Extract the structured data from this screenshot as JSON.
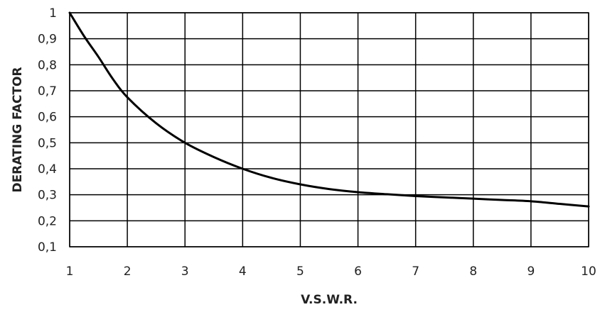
{
  "chart_data": {
    "type": "line",
    "title": "",
    "xlabel": "V.S.W.R.",
    "ylabel": "DERATING FACTOR",
    "xlim": [
      1,
      10
    ],
    "ylim": [
      0.1,
      1
    ],
    "grid": true,
    "x_ticks": [
      "1",
      "2",
      "3",
      "4",
      "5",
      "6",
      "7",
      "8",
      "9",
      "10"
    ],
    "y_ticks": [
      "0,1",
      "0,2",
      "0,3",
      "0,4",
      "0,5",
      "0,6",
      "0,7",
      "0,8",
      "0,9",
      "1"
    ],
    "series": [
      {
        "x": [
          1,
          1.25,
          1.5,
          1.75,
          2,
          2.5,
          3,
          3.5,
          4,
          4.5,
          5,
          5.5,
          6,
          6.5,
          7,
          7.5,
          8,
          8.5,
          9,
          9.5,
          10
        ],
        "y": [
          1.0,
          0.91,
          0.83,
          0.745,
          0.675,
          0.575,
          0.5,
          0.445,
          0.4,
          0.365,
          0.34,
          0.322,
          0.31,
          0.302,
          0.295,
          0.29,
          0.285,
          0.28,
          0.275,
          0.265,
          0.255
        ]
      }
    ],
    "colors": {
      "line": "#000000",
      "grid": "#000000",
      "background": "#ffffff"
    }
  }
}
